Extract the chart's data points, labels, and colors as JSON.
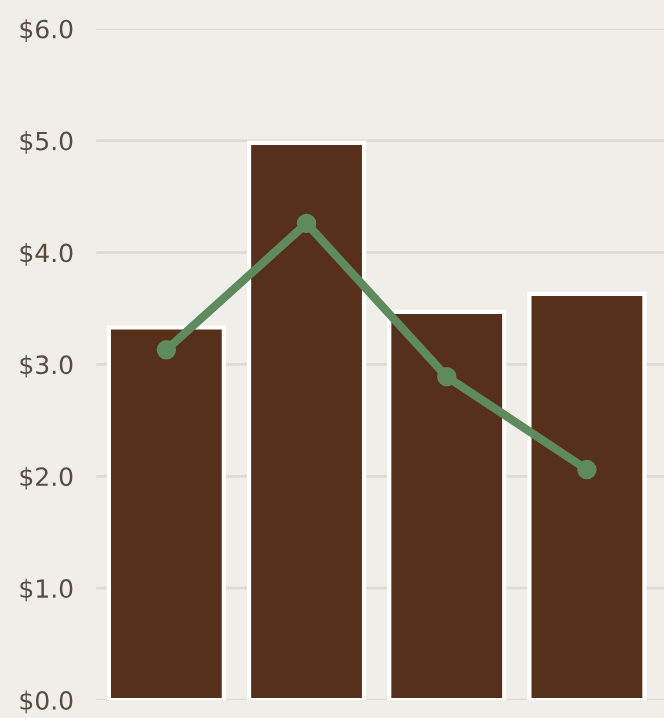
{
  "chart_data": {
    "type": "bar",
    "categories": [
      null,
      null,
      null,
      null
    ],
    "series": [
      {
        "color": "#56301a",
        "values": [
          3.33,
          4.98,
          3.47,
          3.63
        ]
      },
      {
        "type": "line",
        "color": "#5e8a5e",
        "values": [
          3.13,
          4.26,
          2.89,
          2.06
        ]
      }
    ],
    "ylim": [
      0,
      6
    ],
    "yticks": [
      {
        "value": 0,
        "label": "$0.0"
      },
      {
        "value": 1,
        "label": "$1.0"
      },
      {
        "value": 2,
        "label": "$2.0"
      },
      {
        "value": 3,
        "label": "$3.0"
      },
      {
        "value": 4,
        "label": "$4.0"
      },
      {
        "value": 5,
        "label": "$5.0"
      },
      {
        "value": 6,
        "label": "$6.0"
      }
    ],
    "grid": "y",
    "marker": "circle",
    "line_style": "solid",
    "tick_labels": "y"
  }
}
